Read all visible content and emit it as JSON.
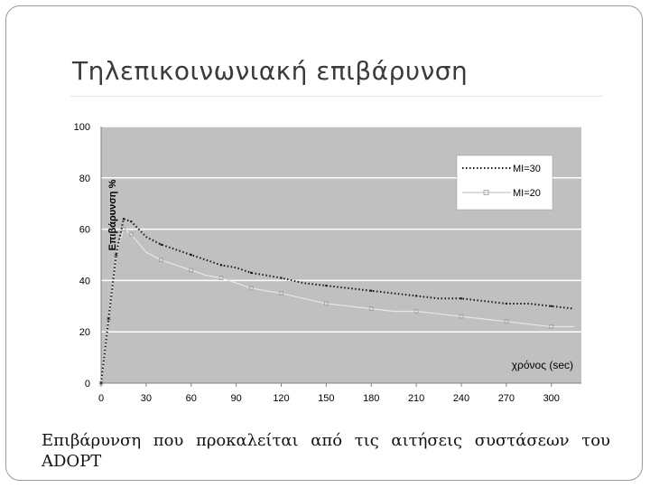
{
  "slide": {
    "title": "Τηλεπικοινωνιακή επιβάρυνση",
    "caption": "Επιβάρυνση που προκαλείται από τις αιτήσεις συστάσεων του ADOPT"
  },
  "chart_data": {
    "type": "line",
    "title": "",
    "xlabel": "χρόνος (sec)",
    "ylabel": "Επιβάρυνση %",
    "xlim": [
      0,
      320
    ],
    "ylim": [
      0,
      100
    ],
    "x_ticks": [
      0,
      30,
      60,
      90,
      120,
      150,
      180,
      210,
      240,
      270,
      300
    ],
    "y_ticks": [
      0,
      20,
      40,
      60,
      80,
      100
    ],
    "grid": true,
    "legend_position": "top-right",
    "plot_bg": "#c0c0c0",
    "series": [
      {
        "name": "MI=30",
        "style": "dotted",
        "color": "#1a1a1a",
        "x": [
          0,
          5,
          10,
          15,
          20,
          30,
          40,
          50,
          60,
          70,
          80,
          90,
          100,
          110,
          120,
          135,
          150,
          165,
          180,
          195,
          210,
          225,
          240,
          255,
          270,
          285,
          300,
          315
        ],
        "y": [
          0,
          25,
          50,
          64,
          63,
          57,
          54,
          52,
          50,
          48,
          46,
          45,
          43,
          42,
          41,
          39,
          38,
          37,
          36,
          35,
          34,
          33,
          33,
          32,
          31,
          31,
          30,
          29
        ]
      },
      {
        "name": "MI=20",
        "style": "solid-square-markers",
        "color": "#e6e6e6",
        "x": [
          0,
          5,
          10,
          15,
          20,
          30,
          40,
          50,
          60,
          70,
          80,
          90,
          100,
          110,
          120,
          135,
          150,
          165,
          180,
          195,
          210,
          225,
          240,
          255,
          270,
          285,
          300,
          315
        ],
        "y": [
          0,
          25,
          50,
          60,
          58,
          51,
          48,
          46,
          44,
          42,
          41,
          39,
          37,
          36,
          35,
          33,
          31,
          30,
          29,
          28,
          28,
          27,
          26,
          25,
          24,
          23,
          22,
          22
        ]
      }
    ]
  }
}
